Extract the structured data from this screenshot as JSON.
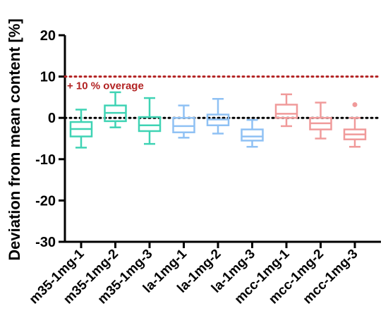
{
  "chart_data": {
    "type": "box",
    "ylabel": "Deviation from mean content [%]",
    "ylim": [
      -30,
      20
    ],
    "yticks": [
      20,
      10,
      0,
      -10,
      -20,
      -30
    ],
    "categories": [
      "m35-1mg-1",
      "m35-1mg-2",
      "m35-1mg-3",
      "la-1mg-1",
      "la-1mg-2",
      "la-1mg-3",
      "mcc-1mg-1",
      "mcc-1mg-2",
      "mcc-1mg-3"
    ],
    "boxes": [
      {
        "min": -7.2,
        "q1": -4.5,
        "median": -2.7,
        "q3": -1.0,
        "max": 2.0,
        "color": "#3fd3b4"
      },
      {
        "min": -2.3,
        "q1": -0.8,
        "median": 1.2,
        "q3": 3.0,
        "max": 6.2,
        "color": "#3fd3b4"
      },
      {
        "min": -6.3,
        "q1": -3.2,
        "median": -1.8,
        "q3": 0.2,
        "max": 4.8,
        "color": "#3fd3b4"
      },
      {
        "min": -4.8,
        "q1": -3.5,
        "median": -2.0,
        "q3": 0.0,
        "max": 3.0,
        "color": "#8fc1f4"
      },
      {
        "min": -3.8,
        "q1": -1.8,
        "median": -0.4,
        "q3": 0.8,
        "max": 4.6,
        "color": "#8fc1f4"
      },
      {
        "min": -7.0,
        "q1": -5.5,
        "median": -4.5,
        "q3": -2.8,
        "max": -0.5,
        "color": "#8fc1f4"
      },
      {
        "min": -2.0,
        "q1": 0.0,
        "median": 1.0,
        "q3": 3.2,
        "max": 5.7,
        "color": "#f09a9a"
      },
      {
        "min": -5.0,
        "q1": -2.8,
        "median": -1.3,
        "q3": 0.0,
        "max": 3.7,
        "color": "#f09a9a"
      },
      {
        "min": -7.0,
        "q1": -5.2,
        "median": -4.0,
        "q3": -2.8,
        "max": 0.0,
        "outliers": [
          3.2
        ],
        "color": "#f09a9a"
      }
    ],
    "reference_lines": [
      {
        "y": 10,
        "label": "+ 10 % overage",
        "color": "#b22222",
        "style": "dotted"
      },
      {
        "y": 0,
        "label": "",
        "color": "#000000",
        "style": "dotted"
      }
    ]
  }
}
